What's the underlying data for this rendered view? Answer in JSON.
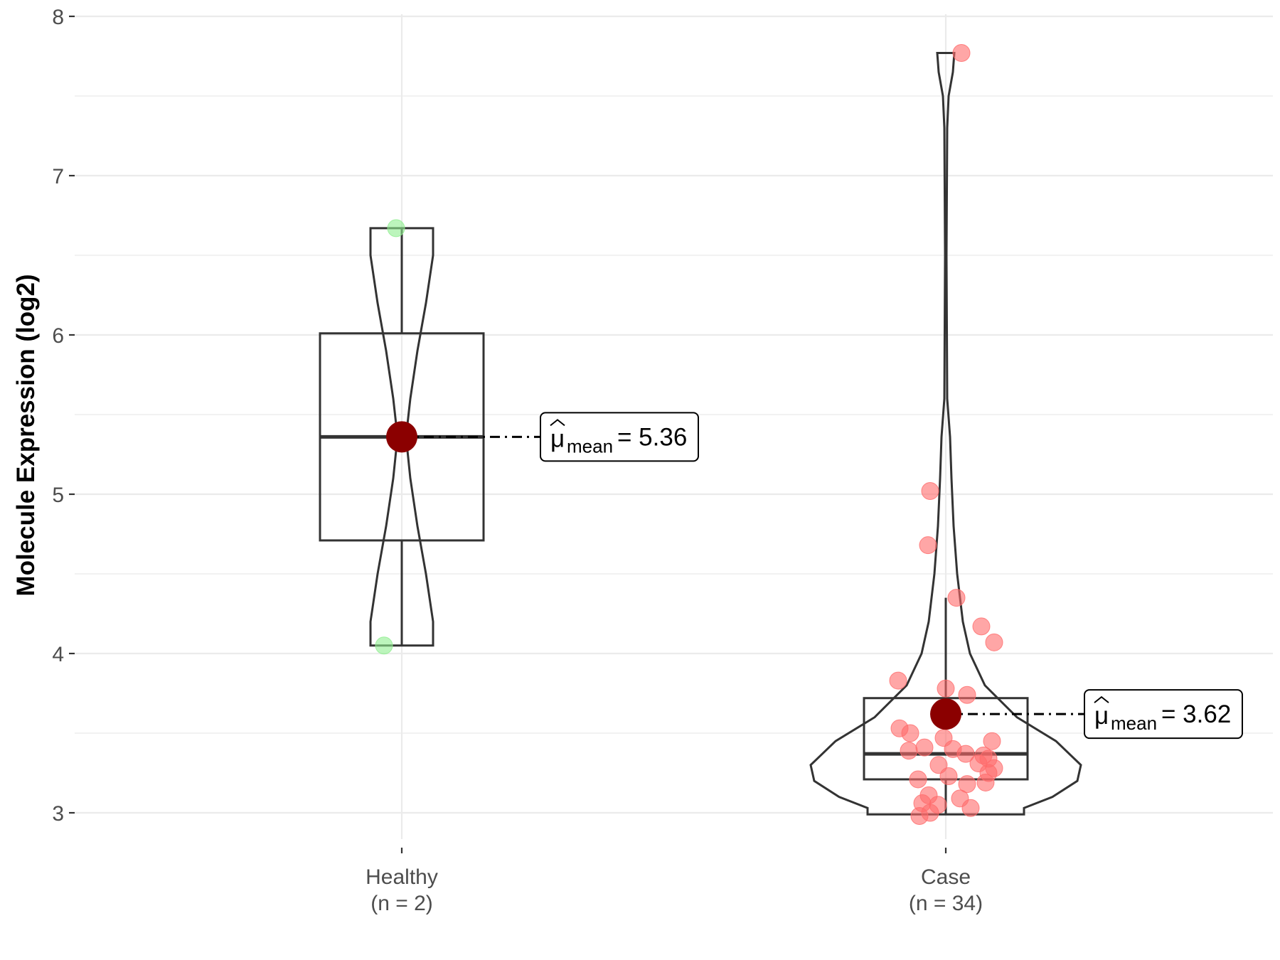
{
  "chart_data": {
    "type": "violin",
    "ylabel": "Molecule Expression (log2)",
    "ylim": [
      2.75,
      8.05
    ],
    "yticks": [
      3,
      4,
      5,
      6,
      7,
      8
    ],
    "grid": true,
    "groups": [
      {
        "name": "Healthy",
        "n_label": "(n = 2)",
        "point_color": "#90ee90",
        "points": [
          6.67,
          4.05
        ],
        "box": {
          "q1": 4.71,
          "median": 5.36,
          "q3": 6.01,
          "whisker_low": 4.05,
          "whisker_high": 6.67
        },
        "mean": 5.36,
        "mean_label": "= 5.36",
        "mean_label_prefix": "μ",
        "mean_label_sub": "mean"
      },
      {
        "name": "Case",
        "n_label": "(n = 34)",
        "point_color": "#ff6b6b",
        "points": [
          7.77,
          5.02,
          4.68,
          4.35,
          4.17,
          4.07,
          3.83,
          3.78,
          3.74,
          3.53,
          3.5,
          3.47,
          3.45,
          3.41,
          3.4,
          3.39,
          3.37,
          3.36,
          3.34,
          3.31,
          3.3,
          3.28,
          3.25,
          3.23,
          3.21,
          3.19,
          3.18,
          3.11,
          3.09,
          3.06,
          3.05,
          3.03,
          3.0,
          2.98
        ],
        "box": {
          "q1": 3.21,
          "median": 3.37,
          "q3": 3.72,
          "whisker_low": 2.99,
          "whisker_high": 4.35
        },
        "mean": 3.62,
        "mean_label": "= 3.62",
        "mean_label_prefix": "μ",
        "mean_label_sub": "mean"
      }
    ],
    "mean_point_color": "#8b0000"
  }
}
